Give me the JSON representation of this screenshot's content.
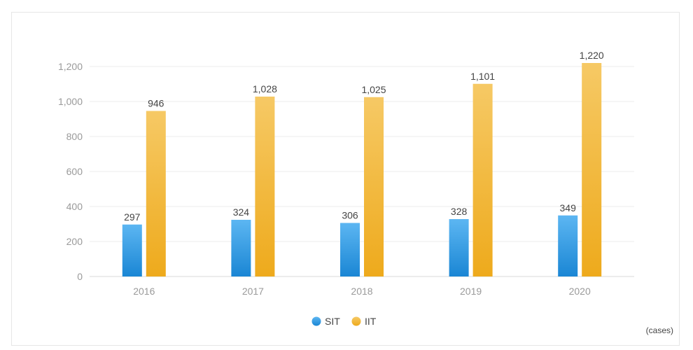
{
  "chart_data": {
    "type": "bar",
    "categories": [
      "2016",
      "2017",
      "2018",
      "2019",
      "2020"
    ],
    "series": [
      {
        "name": "SIT",
        "values": [
          297,
          324,
          306,
          328,
          349
        ],
        "color_top": "#5cb6f2",
        "color_bottom": "#1a86d4",
        "legend_color": "#2a94e0"
      },
      {
        "name": "IIT",
        "values": [
          946,
          1028,
          1025,
          1101,
          1220
        ],
        "color_top": "#f6c965",
        "color_bottom": "#eeaa1c",
        "legend_color": "#f2b431"
      }
    ],
    "ylim": [
      0,
      1200
    ],
    "yticks": [
      0,
      200,
      400,
      600,
      800,
      1000,
      1200
    ],
    "grid": true,
    "legend_position": "bottom-center",
    "unit_label": "(cases)"
  }
}
